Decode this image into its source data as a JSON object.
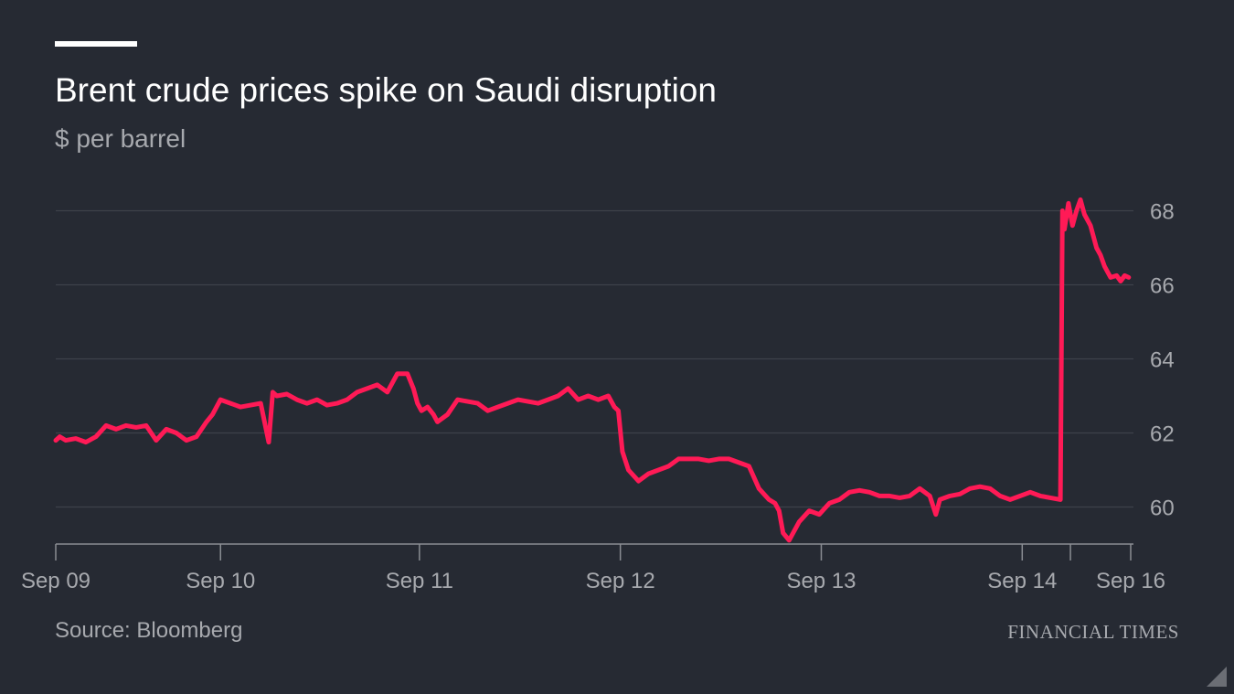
{
  "header": {
    "title": "Brent crude prices spike on Saudi disruption",
    "subtitle": "$ per barrel"
  },
  "footer": {
    "source": "Source: Bloomberg",
    "brand": "FINANCIAL TIMES"
  },
  "colors": {
    "background": "#262a33",
    "line": "#ff1a56",
    "grid": "#3e424a",
    "text_muted": "#a7a9ae",
    "title": "#ffffff"
  },
  "chart_data": {
    "type": "line",
    "title": "Brent crude prices spike on Saudi disruption",
    "ylabel": "$ per barrel",
    "xlabel": "",
    "ylim": [
      59,
      69
    ],
    "xlim": [
      0,
      5.35
    ],
    "y_ticks": [
      60,
      62,
      64,
      66,
      68
    ],
    "x_ticks": [
      {
        "x": 0,
        "label": "Sep 09"
      },
      {
        "x": 0.82,
        "label": "Sep 10"
      },
      {
        "x": 1.81,
        "label": "Sep 11"
      },
      {
        "x": 2.81,
        "label": "Sep 12"
      },
      {
        "x": 3.81,
        "label": "Sep 13"
      },
      {
        "x": 4.81,
        "label": "Sep 14"
      },
      {
        "x": 5.35,
        "label": "Sep 16"
      }
    ],
    "x_minor_ticks": [
      5.05
    ],
    "grid": true,
    "axis_position": "right",
    "series": [
      {
        "name": "Brent crude",
        "x": [
          0,
          0.02,
          0.05,
          0.1,
          0.15,
          0.2,
          0.25,
          0.3,
          0.35,
          0.4,
          0.45,
          0.5,
          0.55,
          0.6,
          0.65,
          0.7,
          0.75,
          0.78,
          0.82,
          0.87,
          0.92,
          0.97,
          1.02,
          1.06,
          1.08,
          1.1,
          1.15,
          1.2,
          1.25,
          1.3,
          1.35,
          1.4,
          1.45,
          1.5,
          1.55,
          1.6,
          1.65,
          1.7,
          1.75,
          1.78,
          1.8,
          1.82,
          1.85,
          1.88,
          1.9,
          1.95,
          2.0,
          2.05,
          2.1,
          2.15,
          2.2,
          2.25,
          2.3,
          2.35,
          2.4,
          2.45,
          2.5,
          2.55,
          2.6,
          2.65,
          2.7,
          2.75,
          2.78,
          2.8,
          2.82,
          2.85,
          2.9,
          2.95,
          3.0,
          3.05,
          3.1,
          3.15,
          3.2,
          3.25,
          3.3,
          3.35,
          3.4,
          3.45,
          3.5,
          3.55,
          3.58,
          3.6,
          3.62,
          3.65,
          3.7,
          3.75,
          3.8,
          3.85,
          3.9,
          3.95,
          4.0,
          4.05,
          4.1,
          4.15,
          4.2,
          4.25,
          4.3,
          4.35,
          4.38,
          4.4,
          4.45,
          4.5,
          4.55,
          4.6,
          4.65,
          4.7,
          4.75,
          4.8,
          4.85,
          4.9,
          4.95,
          5.0,
          5.01,
          5.02,
          5.04,
          5.06,
          5.08,
          5.1,
          5.12,
          5.15,
          5.18,
          5.2,
          5.22,
          5.25,
          5.28,
          5.3,
          5.32,
          5.34
        ],
        "values": [
          61.8,
          61.9,
          61.8,
          61.85,
          61.75,
          61.9,
          62.2,
          62.1,
          62.2,
          62.15,
          62.2,
          61.8,
          62.1,
          62.0,
          61.8,
          61.9,
          62.3,
          62.5,
          62.9,
          62.8,
          62.7,
          62.75,
          62.8,
          61.75,
          63.1,
          63.0,
          63.05,
          62.9,
          62.8,
          62.9,
          62.75,
          62.8,
          62.9,
          63.1,
          63.2,
          63.3,
          63.1,
          63.6,
          63.6,
          63.2,
          62.8,
          62.6,
          62.7,
          62.5,
          62.3,
          62.5,
          62.9,
          62.85,
          62.8,
          62.6,
          62.7,
          62.8,
          62.9,
          62.85,
          62.8,
          62.9,
          63.0,
          63.2,
          62.9,
          63.0,
          62.9,
          63.0,
          62.7,
          62.6,
          61.5,
          61.0,
          60.7,
          60.9,
          61.0,
          61.1,
          61.3,
          61.3,
          61.3,
          61.25,
          61.3,
          61.3,
          61.2,
          61.1,
          60.5,
          60.2,
          60.1,
          59.9,
          59.3,
          59.1,
          59.6,
          59.9,
          59.8,
          60.1,
          60.2,
          60.4,
          60.45,
          60.4,
          60.3,
          60.3,
          60.25,
          60.3,
          60.5,
          60.3,
          59.8,
          60.2,
          60.3,
          60.35,
          60.5,
          60.55,
          60.5,
          60.3,
          60.2,
          60.3,
          60.4,
          60.3,
          60.25,
          60.2,
          68.0,
          67.5,
          68.2,
          67.6,
          68.0,
          68.3,
          67.9,
          67.6,
          67.0,
          66.8,
          66.5,
          66.2,
          66.25,
          66.1,
          66.25,
          66.2
        ]
      }
    ]
  }
}
